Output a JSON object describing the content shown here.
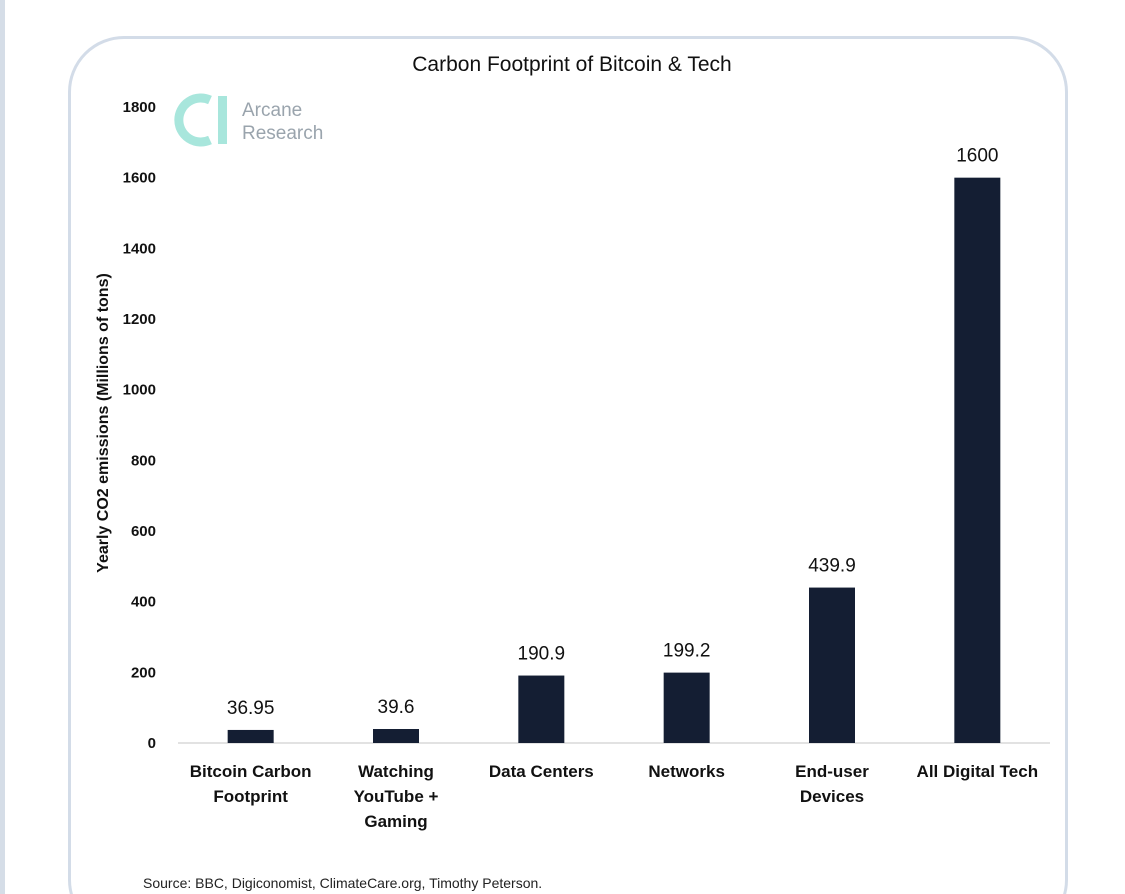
{
  "chart_data": {
    "type": "bar",
    "title": "Carbon Footprint of Bitcoin & Tech",
    "ylabel": "Yearly CO2 emissions (Millions of tons)",
    "xlabel": "",
    "ylim": [
      0,
      1800
    ],
    "yticks": [
      0,
      200,
      400,
      600,
      800,
      1000,
      1200,
      1400,
      1600,
      1800
    ],
    "categories": [
      [
        "Bitcoin Carbon",
        "Footprint"
      ],
      [
        "Watching",
        "YouTube +",
        "Gaming"
      ],
      [
        "Data Centers"
      ],
      [
        "Networks"
      ],
      [
        "End-user",
        "Devices"
      ],
      [
        "All Digital Tech"
      ]
    ],
    "values": [
      36.95,
      39.6,
      190.9,
      199.2,
      439.9,
      1600
    ],
    "value_labels": [
      "36.95",
      "39.6",
      "190.9",
      "199.2",
      "439.9",
      "1600"
    ],
    "bar_color": "#141e33",
    "grid": false,
    "source": "Source: BBC, Digiconomist, ClimateCare.org, Timothy Peterson."
  },
  "brand": {
    "line1": "Arcane",
    "line2": "Research",
    "logo_color": "#a8e6dc",
    "icon": "arcane-logo-icon"
  }
}
